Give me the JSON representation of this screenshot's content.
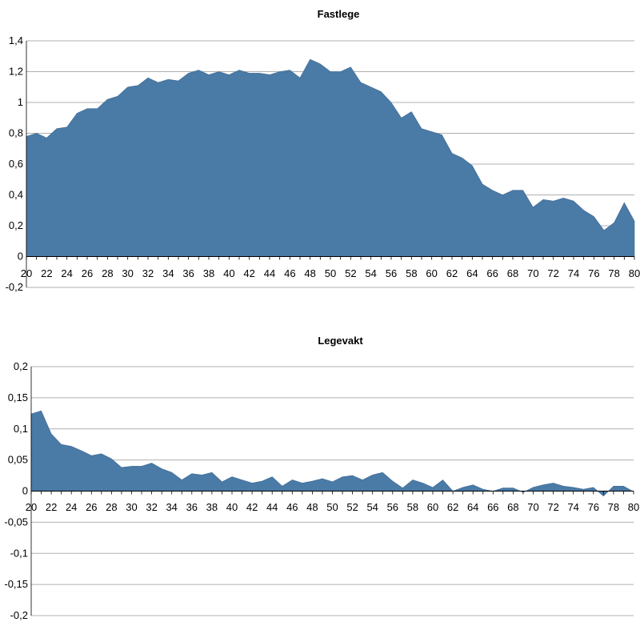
{
  "chart_data": [
    {
      "type": "area",
      "title": "Fastlege",
      "xlabel": "",
      "ylabel": "",
      "xlim": [
        20,
        80
      ],
      "ylim": [
        -0.2,
        1.4
      ],
      "y_ticks": [
        -0.2,
        0,
        0.2,
        0.4,
        0.6,
        0.8,
        1,
        1.2,
        1.4
      ],
      "y_tick_labels": [
        "-0,2",
        "0",
        "0,2",
        "0,4",
        "0,6",
        "0,8",
        "1",
        "1,2",
        "1,4"
      ],
      "x_ticks": [
        20,
        22,
        24,
        26,
        28,
        30,
        32,
        34,
        36,
        38,
        40,
        42,
        44,
        46,
        48,
        50,
        52,
        54,
        56,
        58,
        60,
        62,
        64,
        66,
        68,
        70,
        72,
        74,
        76,
        78,
        80
      ],
      "grid": true,
      "color": "#4a7aa6",
      "x": [
        20,
        21,
        22,
        23,
        24,
        25,
        26,
        27,
        28,
        29,
        30,
        31,
        32,
        33,
        34,
        35,
        36,
        37,
        38,
        39,
        40,
        41,
        42,
        43,
        44,
        45,
        46,
        47,
        48,
        49,
        50,
        51,
        52,
        53,
        54,
        55,
        56,
        57,
        58,
        59,
        60,
        61,
        62,
        63,
        64,
        65,
        66,
        67,
        68,
        69,
        70,
        71,
        72,
        73,
        74,
        75,
        76,
        77,
        78,
        79,
        80
      ],
      "values": [
        0.78,
        0.8,
        0.77,
        0.83,
        0.84,
        0.93,
        0.96,
        0.96,
        1.02,
        1.04,
        1.1,
        1.11,
        1.16,
        1.13,
        1.15,
        1.14,
        1.19,
        1.21,
        1.18,
        1.2,
        1.18,
        1.21,
        1.19,
        1.19,
        1.18,
        1.2,
        1.21,
        1.16,
        1.28,
        1.25,
        1.2,
        1.2,
        1.23,
        1.13,
        1.1,
        1.07,
        1.0,
        0.9,
        0.94,
        0.83,
        0.81,
        0.79,
        0.67,
        0.64,
        0.59,
        0.47,
        0.43,
        0.4,
        0.43,
        0.43,
        0.32,
        0.37,
        0.36,
        0.38,
        0.36,
        0.3,
        0.26,
        0.17,
        0.22,
        0.35,
        0.23
      ]
    },
    {
      "type": "area",
      "title": "Legevakt",
      "xlabel": "",
      "ylabel": "",
      "xlim": [
        20,
        80
      ],
      "ylim": [
        -0.2,
        0.2
      ],
      "y_ticks": [
        -0.2,
        -0.15,
        -0.1,
        -0.05,
        0,
        0.05,
        0.1,
        0.15,
        0.2
      ],
      "y_tick_labels": [
        "-0,2",
        "-0,15",
        "-0,1",
        "-0,05",
        "0",
        "0,05",
        "0,1",
        "0,15",
        "0,2"
      ],
      "x_ticks": [
        20,
        22,
        24,
        26,
        28,
        30,
        32,
        34,
        36,
        38,
        40,
        42,
        44,
        46,
        48,
        50,
        52,
        54,
        56,
        58,
        60,
        62,
        64,
        66,
        68,
        70,
        72,
        74,
        76,
        78,
        80
      ],
      "grid": true,
      "color": "#4a7aa6",
      "x": [
        20,
        21,
        22,
        23,
        24,
        25,
        26,
        27,
        28,
        29,
        30,
        31,
        32,
        33,
        34,
        35,
        36,
        37,
        38,
        39,
        40,
        41,
        42,
        43,
        44,
        45,
        46,
        47,
        48,
        49,
        50,
        51,
        52,
        53,
        54,
        55,
        56,
        57,
        58,
        59,
        60,
        61,
        62,
        63,
        64,
        65,
        66,
        67,
        68,
        69,
        70,
        71,
        72,
        73,
        74,
        75,
        76,
        77,
        78,
        79,
        80
      ],
      "values": [
        0.124,
        0.129,
        0.092,
        0.075,
        0.072,
        0.065,
        0.057,
        0.06,
        0.052,
        0.038,
        0.04,
        0.04,
        0.045,
        0.036,
        0.03,
        0.018,
        0.028,
        0.026,
        0.03,
        0.015,
        0.023,
        0.018,
        0.013,
        0.016,
        0.023,
        0.008,
        0.018,
        0.013,
        0.016,
        0.02,
        0.015,
        0.023,
        0.025,
        0.018,
        0.026,
        0.03,
        0.016,
        0.005,
        0.018,
        0.013,
        0.006,
        0.018,
        0.0,
        0.006,
        0.01,
        0.003,
        0.0,
        0.005,
        0.005,
        -0.002,
        0.006,
        0.01,
        0.013,
        0.008,
        0.006,
        0.003,
        0.006,
        -0.008,
        0.008,
        0.008,
        -0.001
      ]
    }
  ]
}
